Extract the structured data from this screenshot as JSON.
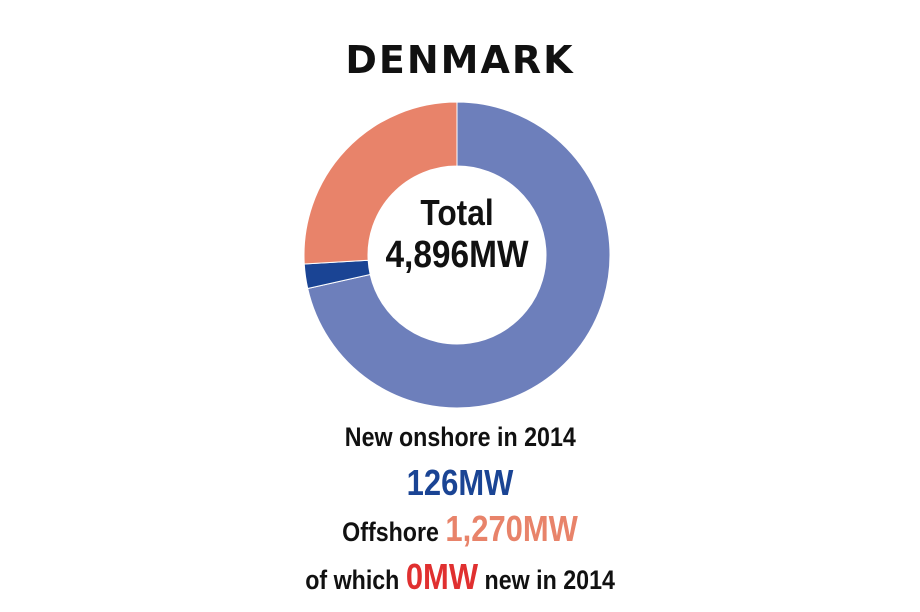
{
  "title": "DENMARK",
  "colors": {
    "onshore_existing": "#6d7fbb",
    "onshore_new": "#1a4494",
    "offshore": "#e8836a",
    "offshore_new": "#e03030",
    "text": "#111111"
  },
  "center": {
    "line1": "Total",
    "line2": "4,896MW"
  },
  "captions": {
    "new_onshore_label": "New onshore in 2014",
    "new_onshore_value": "126MW",
    "offshore_label": "Offshore",
    "offshore_value": "1,270MW",
    "offshore_new_prefix": "of which",
    "offshore_new_value": "0MW",
    "offshore_new_suffix": "new in 2014"
  },
  "chart_data": {
    "type": "pie",
    "title": "DENMARK",
    "total": 4896,
    "unit": "MW",
    "slices": [
      {
        "label": "",
        "value": 3500,
        "color": "#6d7fbb"
      },
      {
        "label": "New onshore in 2014",
        "value": 126,
        "color": "#1a4494"
      },
      {
        "label": "Offshore",
        "value": 1270,
        "color": "#e8836a"
      }
    ]
  }
}
